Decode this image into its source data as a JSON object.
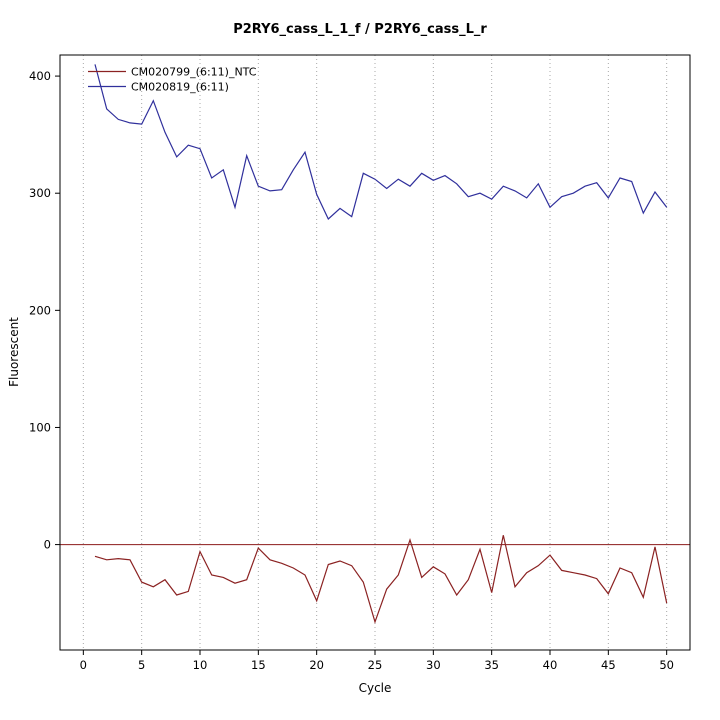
{
  "title": "P2RY6_cass_L_1_f / P2RY6_cass_L_r",
  "chart_data": {
    "type": "line",
    "title": "P2RY6_cass_L_1_f / P2RY6_cass_L_r",
    "xlabel": "Cycle",
    "ylabel": "Fluorescent",
    "xlim": [
      -2,
      52
    ],
    "ylim": [
      -90,
      418
    ],
    "x_ticks": [
      0,
      5,
      10,
      15,
      20,
      25,
      30,
      35,
      40,
      45,
      50
    ],
    "y_ticks": [
      0,
      100,
      200,
      300,
      400
    ],
    "grid": "vertical-dotted",
    "legend_position": "top-left",
    "zero_line_color": "#8b1a1a",
    "x": [
      1,
      2,
      3,
      4,
      5,
      6,
      7,
      8,
      9,
      10,
      11,
      12,
      13,
      14,
      15,
      16,
      17,
      18,
      19,
      20,
      21,
      22,
      23,
      24,
      25,
      26,
      27,
      28,
      29,
      30,
      31,
      32,
      33,
      34,
      35,
      36,
      37,
      38,
      39,
      40,
      41,
      42,
      43,
      44,
      45,
      46,
      47,
      48,
      49,
      50
    ],
    "series": [
      {
        "name": "CM020799_(6:11)_NTC",
        "color": "#8b2222",
        "values": [
          -10,
          -13,
          -12,
          -13,
          -32,
          -36,
          -30,
          -43,
          -40,
          -6,
          -26,
          -28,
          -33,
          -30,
          -3,
          -13,
          -16,
          -20,
          -26,
          -48,
          -17,
          -14,
          -18,
          -32,
          -66,
          -38,
          -26,
          4,
          -28,
          -19,
          -25,
          -43,
          -30,
          -4,
          -41,
          8,
          -36,
          -24,
          -18,
          -9,
          -22,
          -24,
          -26,
          -29,
          -42,
          -20,
          -24,
          -45,
          -2,
          -50
        ]
      },
      {
        "name": "CM020819_(6:11)",
        "color": "#30309c",
        "values": [
          410,
          372,
          363,
          360,
          359,
          379,
          352,
          331,
          341,
          338,
          313,
          320,
          288,
          332,
          306,
          302,
          303,
          320,
          335,
          299,
          278,
          287,
          280,
          317,
          312,
          304,
          312,
          306,
          317,
          311,
          315,
          308,
          297,
          300,
          295,
          306,
          302,
          296,
          308,
          288,
          297,
          300,
          306,
          309,
          296,
          313,
          310,
          283,
          301,
          288
        ]
      }
    ]
  }
}
